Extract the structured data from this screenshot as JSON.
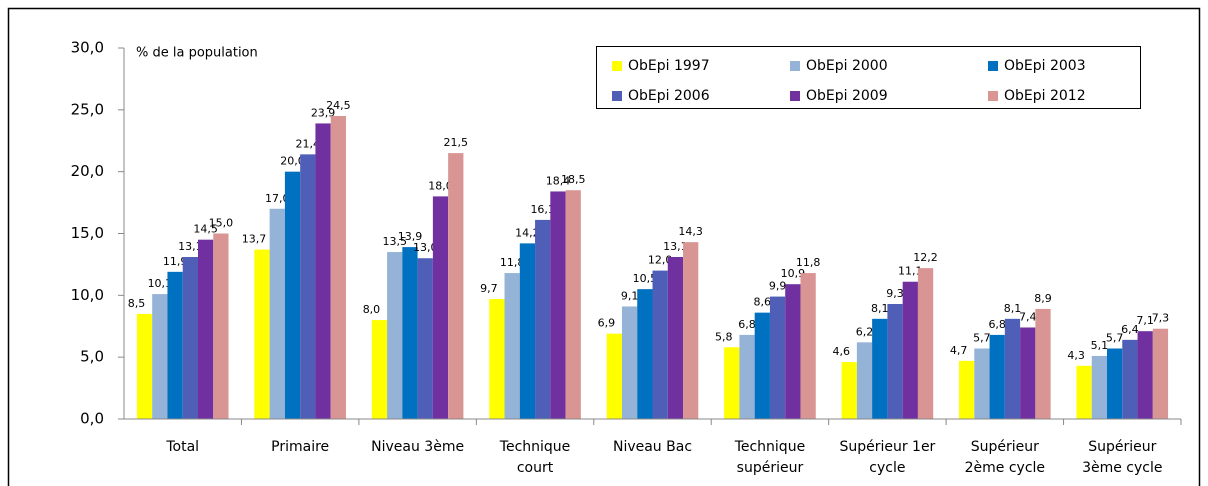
{
  "chart_data": {
    "type": "bar",
    "y_axis_label": "% de la population",
    "categories": [
      "Total",
      "Primaire",
      "Niveau 3ème",
      "Technique\ncourt",
      "Niveau Bac",
      "Technique\nsupérieur",
      "Supérieur 1er\ncycle",
      "Supérieur\n2ème cycle",
      "Supérieur\n3ème cycle"
    ],
    "series": [
      {
        "name": "ObEpi 1997",
        "color": "#ffff00",
        "values": [
          8.5,
          13.7,
          8.0,
          9.7,
          6.9,
          5.8,
          4.6,
          4.7,
          4.3
        ],
        "value_labels": [
          "8,5",
          "13,7",
          "8,0",
          "9,7",
          "6,9",
          "5,8",
          "4,6",
          "4,7",
          "4,3"
        ]
      },
      {
        "name": "ObEpi 2000",
        "color": "#95b3d7",
        "values": [
          10.1,
          17.0,
          13.5,
          11.8,
          9.1,
          6.8,
          6.2,
          5.7,
          5.1
        ],
        "value_labels": [
          "10,1",
          "17,0",
          "13,5",
          "11,8",
          "9,1",
          "6,8",
          "6,2",
          "5,7",
          "5,1"
        ]
      },
      {
        "name": "ObEpi 2003",
        "color": "#0070c0",
        "values": [
          11.9,
          20.0,
          13.9,
          14.2,
          10.5,
          8.6,
          8.1,
          6.8,
          5.7
        ],
        "value_labels": [
          "11,9",
          "20,0",
          "13,9",
          "14,2",
          "10,5",
          "8,6",
          "8,1",
          "6,8",
          "5,7"
        ]
      },
      {
        "name": "ObEpi 2006",
        "color": "#4f5fb8",
        "values": [
          13.1,
          21.4,
          13.0,
          16.1,
          12.0,
          9.9,
          9.3,
          8.1,
          6.4
        ],
        "value_labels": [
          "13,1",
          "21,4",
          "13,0",
          "16,1",
          "12,0",
          "9,9",
          "9,3",
          "8,1",
          "6,4"
        ]
      },
      {
        "name": "ObEpi 2009",
        "color": "#7030a0",
        "values": [
          14.5,
          23.9,
          18.0,
          18.4,
          13.1,
          10.9,
          11.1,
          7.4,
          7.1
        ],
        "value_labels": [
          "14,5",
          "23,9",
          "18,0",
          "18,4",
          "13,1",
          "10,9",
          "11,1",
          "7,4",
          "7,1"
        ]
      },
      {
        "name": "ObEpi 2012",
        "color": "#d99594",
        "values": [
          15.0,
          24.5,
          21.5,
          18.5,
          14.3,
          11.8,
          12.2,
          8.9,
          7.3
        ],
        "value_labels": [
          "15,0",
          "24,5",
          "21,5",
          "18,5",
          "14,3",
          "11,8",
          "12,2",
          "8,9",
          "7,3"
        ]
      }
    ],
    "ylim": [
      0,
      30
    ],
    "yticks": [
      {
        "value": 0,
        "label": "0,0"
      },
      {
        "value": 5,
        "label": "5,0"
      },
      {
        "value": 10,
        "label": "10,0"
      },
      {
        "value": 15,
        "label": "15,0"
      },
      {
        "value": 20,
        "label": "20,0"
      },
      {
        "value": 25,
        "label": "25,0"
      },
      {
        "value": 30,
        "label": "30,0"
      }
    ],
    "legend": "top-right",
    "grid": false
  }
}
